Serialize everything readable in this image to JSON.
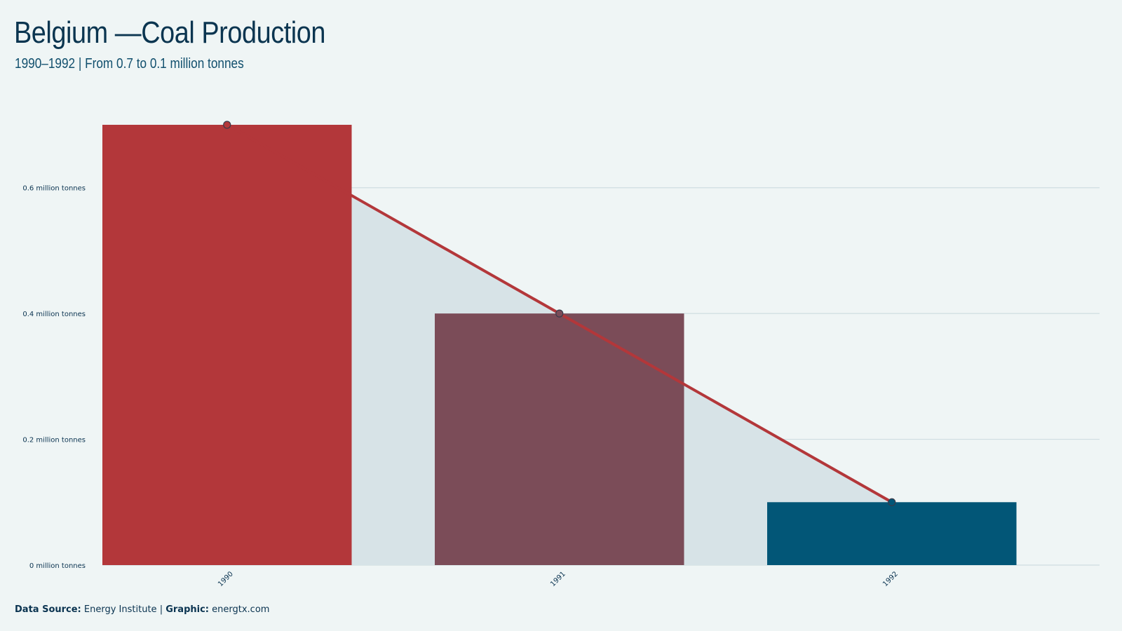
{
  "header": {
    "title": "Belgium —Coal Production",
    "subtitle": "1990–1992 | From 0.7 to 0.1 million tonnes"
  },
  "footer": {
    "source_label": "Data Source:",
    "source_value": "Energy Institute",
    "separator": "|",
    "graphic_label": "Graphic:",
    "graphic_value": "energtx.com"
  },
  "colors": {
    "background": "#eff5f5",
    "area_fill": "#d7e3e7",
    "grid": "#cfdde1",
    "line": "#b3373a",
    "bar_1990": "#b3373a",
    "bar_1991": "#7b4c58",
    "bar_1992": "#025677",
    "text": "#0a3350"
  },
  "chart_data": {
    "type": "bar",
    "categories": [
      "1990",
      "1991",
      "1992"
    ],
    "values": [
      0.7,
      0.4,
      0.1
    ],
    "unit": "million tonnes",
    "bar_colors": [
      "#b3373a",
      "#7b4c58",
      "#025677"
    ],
    "overlay": {
      "type": "line",
      "values": [
        0.7,
        0.4,
        0.1
      ],
      "markers": true,
      "area_fill": true
    },
    "y_ticks": [
      0,
      0.2,
      0.4,
      0.6
    ],
    "y_tick_labels": [
      "0 million tonnes",
      "0.2 million tonnes",
      "0.4 million tonnes",
      "0.6 million tonnes"
    ],
    "ylim": [
      0,
      0.7
    ],
    "grid": true,
    "xlabel": "",
    "ylabel": ""
  }
}
